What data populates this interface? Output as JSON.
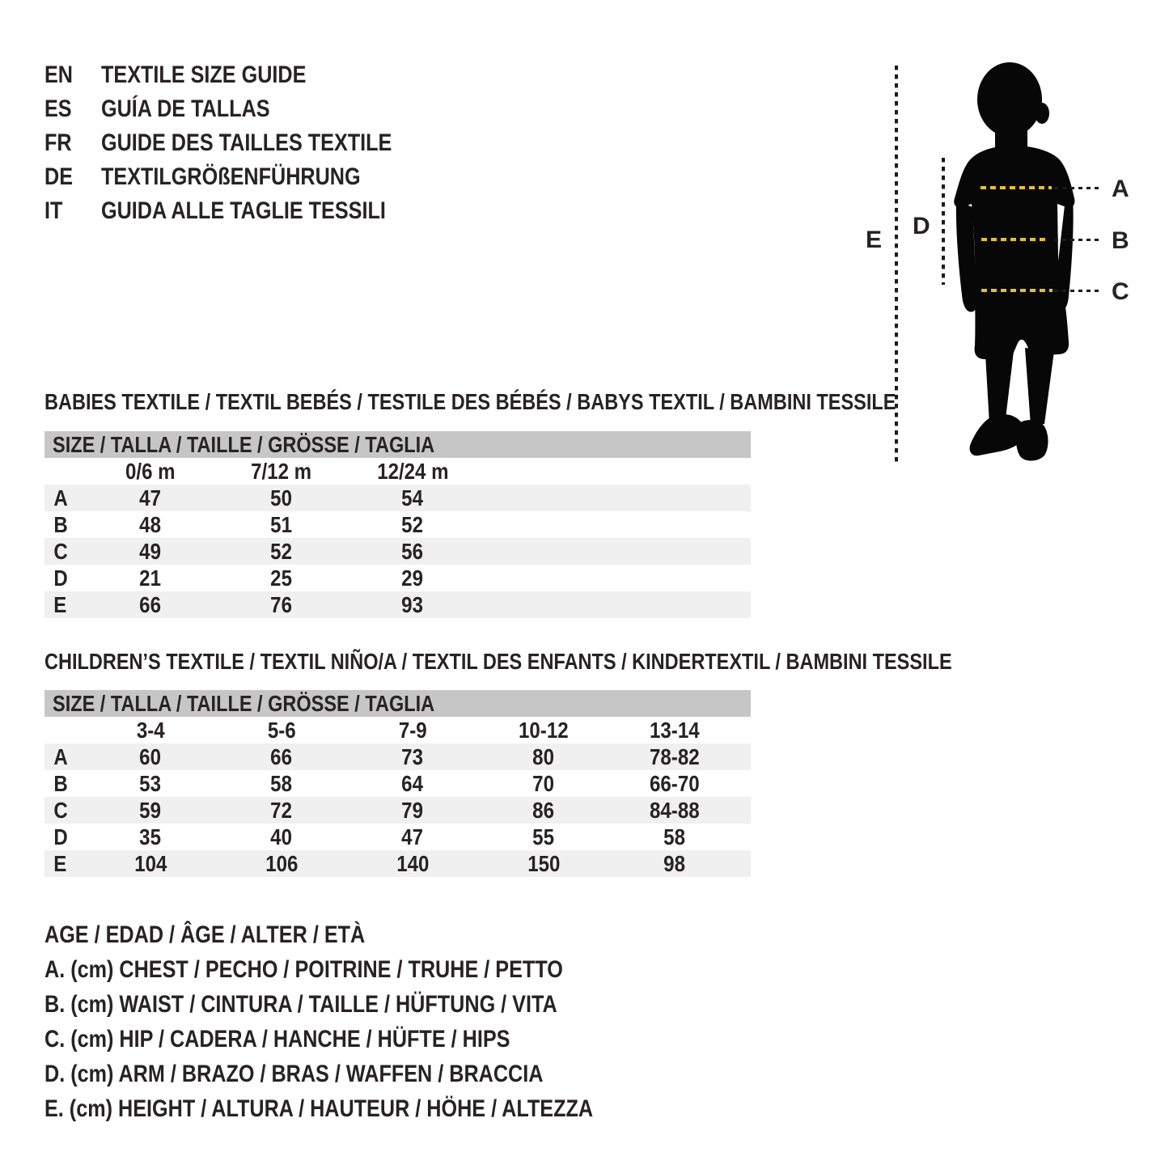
{
  "colors": {
    "paper": "#ffffff",
    "ink": "#272324",
    "table_header_bg": "#c6c6c6",
    "row_stripe": "#f0f0f0",
    "measure_dash_yellow": "#e2bf3a",
    "dotted_line": "#1c1c1c",
    "silhouette": "#070707"
  },
  "header": {
    "languages": [
      {
        "code": "EN",
        "title": "TEXTILE SIZE GUIDE"
      },
      {
        "code": "ES",
        "title": "GUÍA DE TALLAS"
      },
      {
        "code": "FR",
        "title": "GUIDE DES TAILLES TEXTILE"
      },
      {
        "code": "DE",
        "title": "TEXTILGRÖßENFÜHRUNG"
      },
      {
        "code": "IT",
        "title": "GUIDA ALLE TAGLIE TESSILI"
      }
    ]
  },
  "figure": {
    "measure_labels": [
      "A",
      "B",
      "C"
    ],
    "arm_label": "D",
    "height_label": "E"
  },
  "babies_table": {
    "title": "BABIES TEXTILE / TEXTIL BEBÉS / TESTILE DES BÉBÉS / BABYS TEXTIL / BAMBINI TESSILE",
    "size_header": "SIZE / TALLA / TAILLE / GRÖSSE / TAGLIA",
    "columns": [
      "0/6 m",
      "7/12 m",
      "12/24 m"
    ],
    "rows": [
      {
        "label": "A",
        "values": [
          "47",
          "50",
          "54"
        ]
      },
      {
        "label": "B",
        "values": [
          "48",
          "51",
          "52"
        ]
      },
      {
        "label": "C",
        "values": [
          "49",
          "52",
          "56"
        ]
      },
      {
        "label": "D",
        "values": [
          "21",
          "25",
          "29"
        ]
      },
      {
        "label": "E",
        "values": [
          "66",
          "76",
          "93"
        ]
      }
    ]
  },
  "children_table": {
    "title": "CHILDREN’S TEXTILE / TEXTIL NIÑO/A / TEXTIL DES ENFANTS / KINDERTEXTIL / BAMBINI TESSILE",
    "size_header": "SIZE / TALLA / TAILLE / GRÖSSE / TAGLIA",
    "columns": [
      "3-4",
      "5-6",
      "7-9",
      "10-12",
      "13-14"
    ],
    "rows": [
      {
        "label": "A",
        "values": [
          "60",
          "66",
          "73",
          "80",
          "78-82"
        ]
      },
      {
        "label": "B",
        "values": [
          "53",
          "58",
          "64",
          "70",
          "66-70"
        ]
      },
      {
        "label": "C",
        "values": [
          "59",
          "72",
          "79",
          "86",
          "84-88"
        ]
      },
      {
        "label": "D",
        "values": [
          "35",
          "40",
          "47",
          "55",
          "58"
        ]
      },
      {
        "label": "E",
        "values": [
          "104",
          "106",
          "140",
          "150",
          "98"
        ]
      }
    ]
  },
  "legend": {
    "lines": [
      "AGE / EDAD / ÂGE / ALTER / ETÀ",
      "A. (cm) CHEST / PECHO / POITRINE / TRUHE / PETTO",
      "B. (cm) WAIST / CINTURA / TAILLE / HÜFTUNG / VITA",
      "C. (cm) HIP / CADERA / HANCHE / HÜFTE / HIPS",
      "D. (cm) ARM / BRAZO / BRAS / WAFFEN / BRACCIA",
      "E. (cm) HEIGHT / ALTURA / HAUTEUR / HÖHE / ALTEZZA"
    ]
  }
}
